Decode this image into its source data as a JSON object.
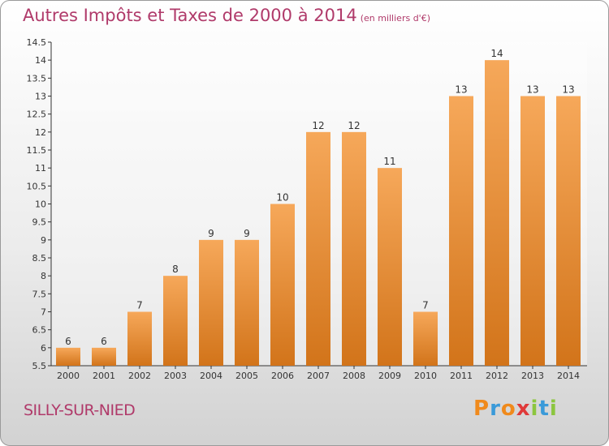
{
  "header": {
    "title": "Autres Impôts et Taxes de 2000 à 2014",
    "unit": "(en milliers d'€)"
  },
  "footer": {
    "city": "SILLY-SUR-NIED",
    "logo_letters": [
      {
        "char": "P",
        "color": "#f08a1c"
      },
      {
        "char": "r",
        "color": "#3a9ad9"
      },
      {
        "char": "o",
        "color": "#f08a1c"
      },
      {
        "char": "x",
        "color": "#e03a3a"
      },
      {
        "char": "i",
        "color": "#8cc63f"
      },
      {
        "char": "t",
        "color": "#3a9ad9"
      },
      {
        "char": "i",
        "color": "#8cc63f"
      }
    ]
  },
  "colors": {
    "bar_light": "#f6a85a",
    "bar_dark": "#d2741a",
    "title": "#b03a6a"
  },
  "chart_data": {
    "type": "bar",
    "title": "Autres Impôts et Taxes de 2000 à 2014",
    "subtitle": "(en milliers d'€)",
    "xlabel": "",
    "ylabel": "",
    "categories": [
      "2000",
      "2001",
      "2002",
      "2003",
      "2004",
      "2005",
      "2006",
      "2007",
      "2008",
      "2009",
      "2010",
      "2011",
      "2012",
      "2013",
      "2014"
    ],
    "values": [
      6,
      6,
      7,
      8,
      9,
      9,
      10,
      12,
      12,
      11,
      7,
      13,
      14,
      13,
      13
    ],
    "ylim": [
      5.5,
      14.5
    ],
    "yticks": [
      "5.5",
      "6",
      "6.5",
      "7",
      "7.5",
      "8",
      "8.5",
      "9",
      "9.5",
      "10",
      "10.5",
      "11",
      "11.5",
      "12",
      "12.5",
      "13",
      "13.5",
      "14",
      "14.5"
    ],
    "grid": false,
    "legend": "none"
  }
}
